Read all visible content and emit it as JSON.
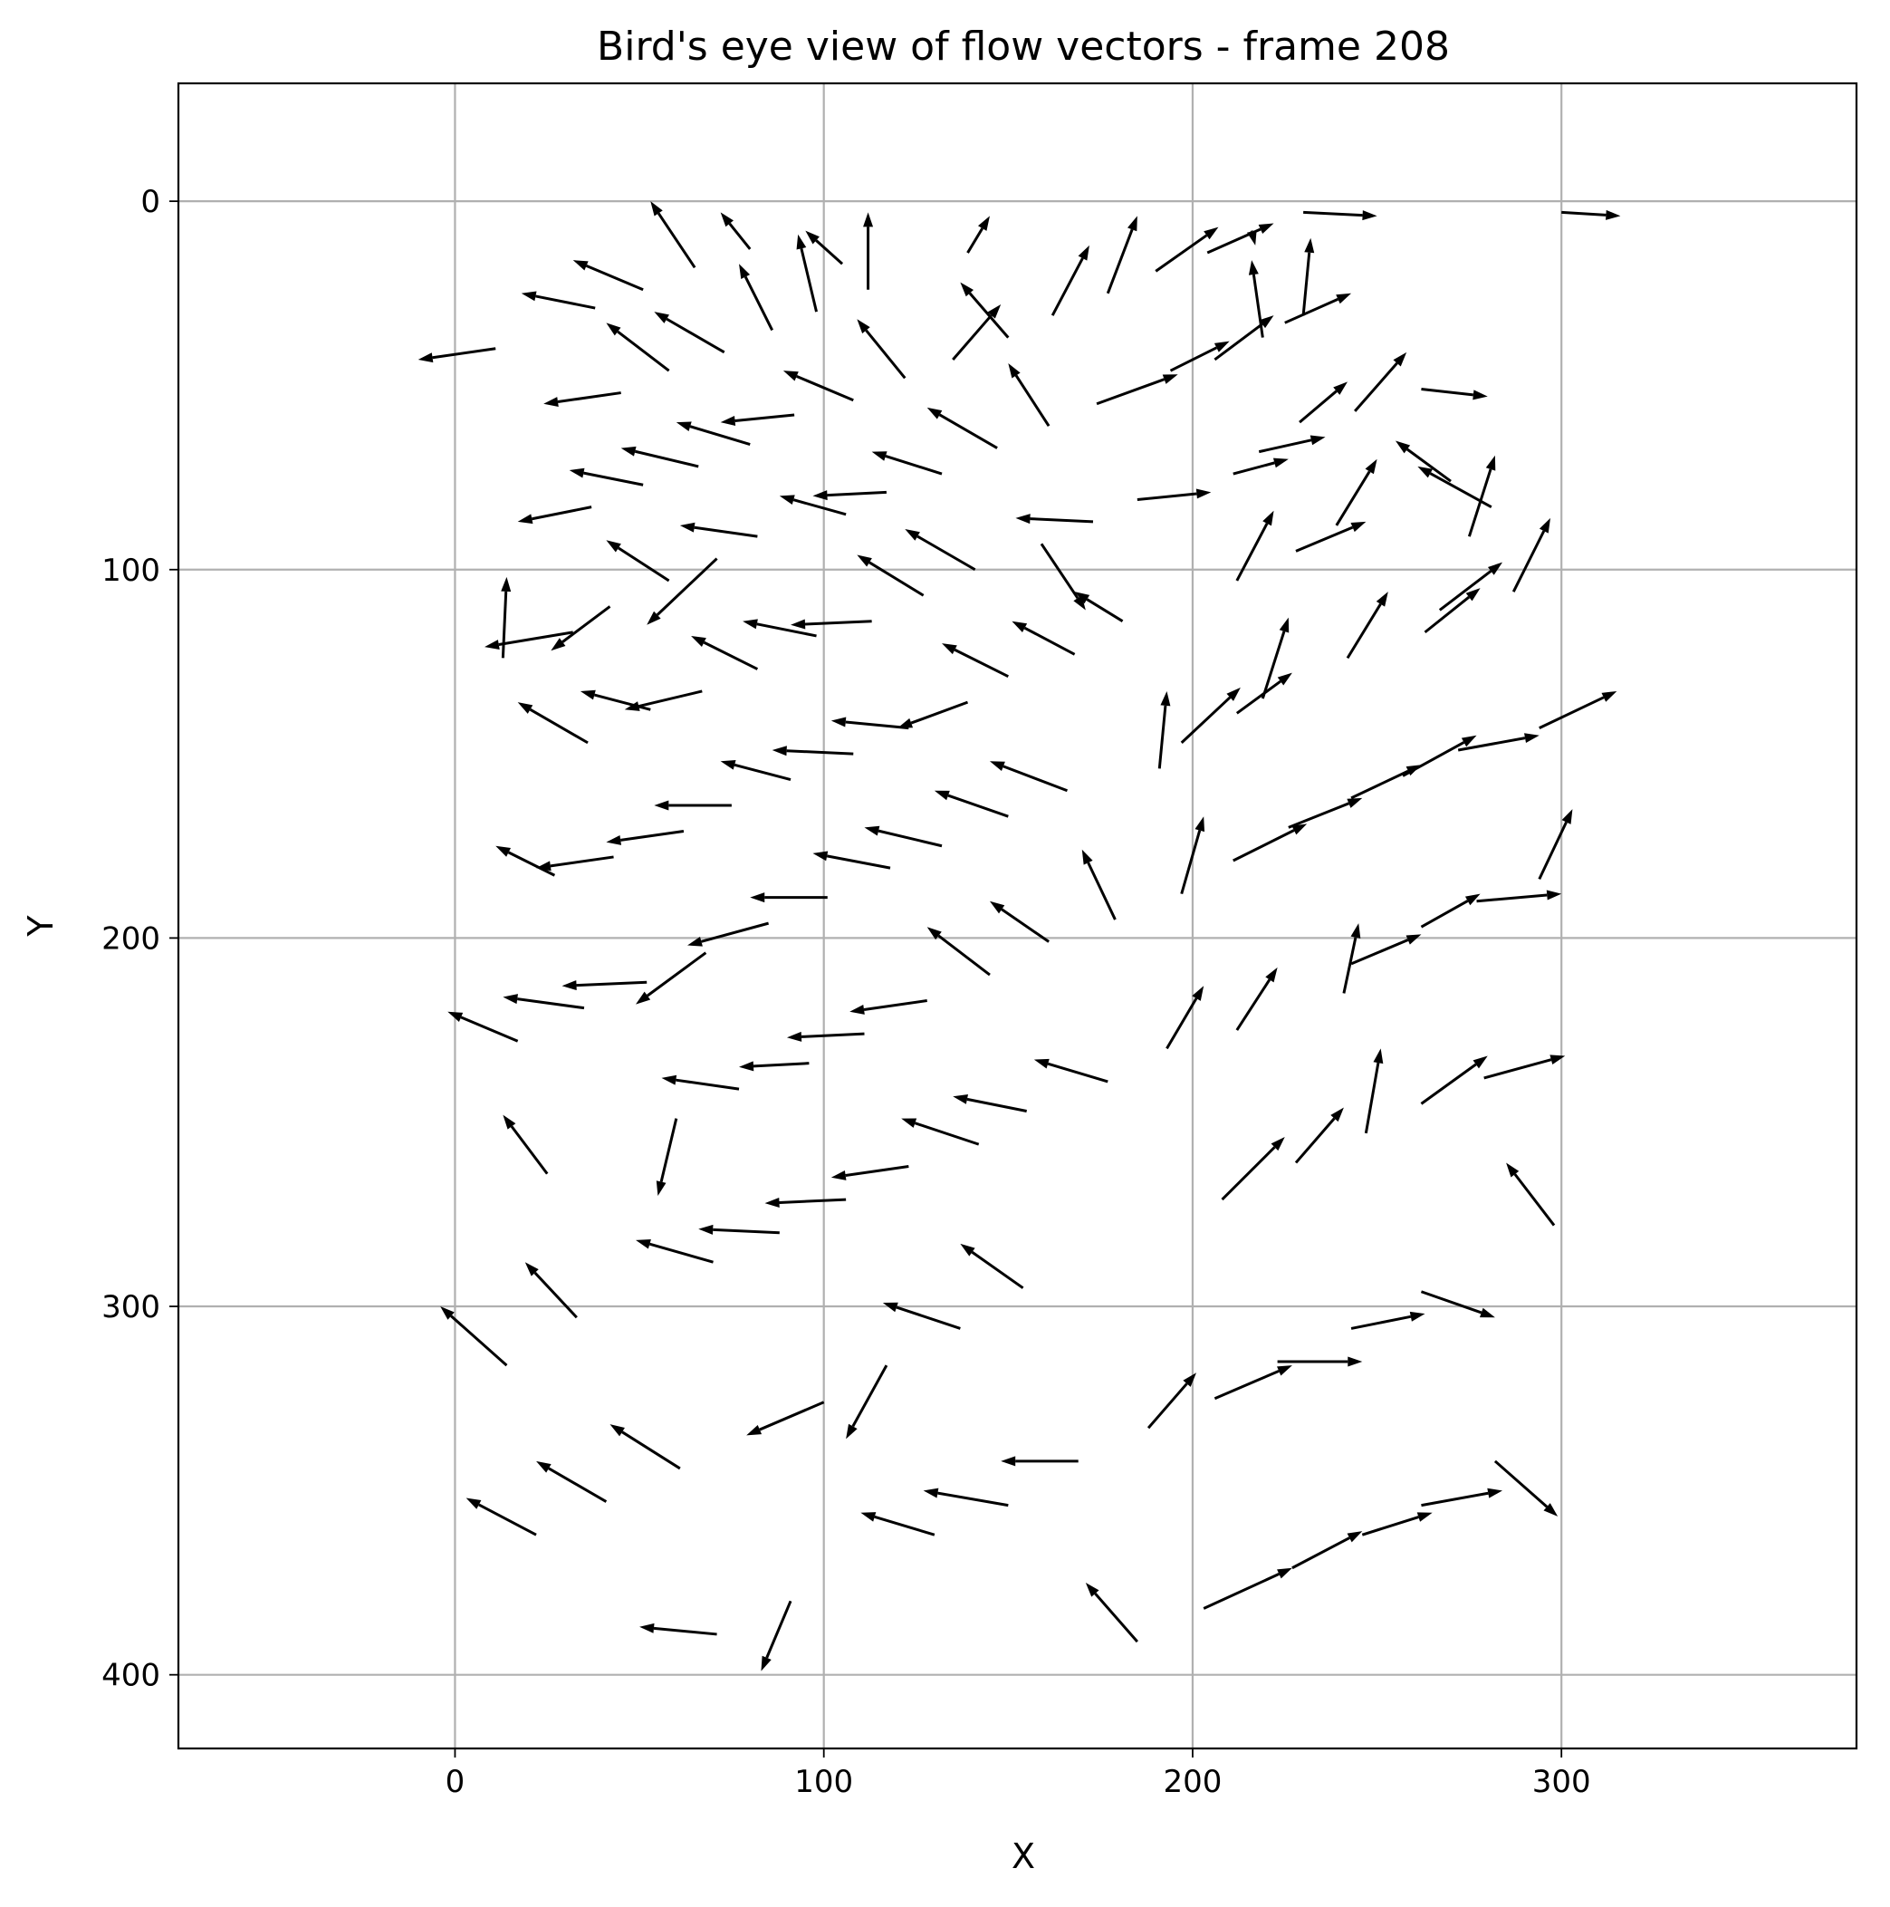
{
  "chart_data": {
    "type": "quiver",
    "title": "Bird's eye view of flow vectors - frame 208",
    "xlabel": "X",
    "ylabel": "Y",
    "xlim": [
      -75,
      380
    ],
    "ylim": [
      420,
      -32
    ],
    "y_inverted": true,
    "grid": true,
    "xticks": [
      0,
      100,
      200,
      300
    ],
    "yticks": [
      0,
      100,
      200,
      300,
      400
    ],
    "vectors": [
      [
        72,
        3,
        80,
        13
      ],
      [
        112,
        3,
        112,
        24
      ],
      [
        145,
        4,
        139,
        14
      ],
      [
        217,
        12,
        216,
        8
      ],
      [
        250,
        4,
        230,
        3
      ],
      [
        316,
        4,
        300,
        3
      ],
      [
        53,
        0,
        65,
        18
      ],
      [
        95,
        8,
        105,
        17
      ],
      [
        93,
        9,
        98,
        30
      ],
      [
        185,
        4,
        177,
        25
      ],
      [
        207,
        7,
        190,
        19
      ],
      [
        222,
        6,
        204,
        14
      ],
      [
        232,
        10,
        230,
        31
      ],
      [
        32,
        16,
        51,
        24
      ],
      [
        77,
        17,
        86,
        35
      ],
      [
        172,
        12,
        162,
        31
      ],
      [
        216,
        16,
        219,
        37
      ],
      [
        18,
        25,
        38,
        29
      ],
      [
        137,
        22,
        150,
        37
      ],
      [
        148,
        28,
        135,
        43
      ],
      [
        243,
        25,
        225,
        33
      ],
      [
        -10,
        43,
        11,
        40
      ],
      [
        41,
        33,
        58,
        46
      ],
      [
        54,
        30,
        73,
        41
      ],
      [
        109,
        32,
        122,
        48
      ],
      [
        222,
        31,
        206,
        43
      ],
      [
        150,
        44,
        161,
        61
      ],
      [
        258,
        41,
        244,
        57
      ],
      [
        89,
        46,
        108,
        54
      ],
      [
        24,
        55,
        45,
        52
      ],
      [
        280,
        53,
        262,
        51
      ],
      [
        196,
        47,
        174,
        55
      ],
      [
        210,
        38,
        194,
        46
      ],
      [
        128,
        56,
        147,
        67
      ],
      [
        72,
        60,
        92,
        58
      ],
      [
        60,
        60,
        80,
        66
      ],
      [
        242,
        49,
        229,
        60
      ],
      [
        236,
        64,
        218,
        68
      ],
      [
        45,
        67,
        66,
        72
      ],
      [
        113,
        68,
        132,
        74
      ],
      [
        31,
        73,
        51,
        77
      ],
      [
        255,
        65,
        270,
        76
      ],
      [
        226,
        70,
        211,
        74
      ],
      [
        88,
        80,
        106,
        85
      ],
      [
        97,
        80,
        117,
        79
      ],
      [
        250,
        70,
        239,
        88
      ],
      [
        261,
        72,
        281,
        83
      ],
      [
        205,
        79,
        185,
        81
      ],
      [
        152,
        86,
        173,
        87
      ],
      [
        282,
        69,
        275,
        91
      ],
      [
        17,
        87,
        37,
        83
      ],
      [
        61,
        88,
        82,
        91
      ],
      [
        122,
        89,
        141,
        100
      ],
      [
        222,
        84,
        212,
        103
      ],
      [
        247,
        87,
        228,
        95
      ],
      [
        41,
        92,
        58,
        103
      ],
      [
        109,
        96,
        127,
        107
      ],
      [
        297,
        86,
        287,
        106
      ],
      [
        52,
        115,
        71,
        97
      ],
      [
        284,
        98,
        267,
        111
      ],
      [
        278,
        105,
        263,
        117
      ],
      [
        168,
        106,
        181,
        114
      ],
      [
        171,
        111,
        159,
        93
      ],
      [
        8,
        121,
        32,
        117
      ],
      [
        14,
        102,
        13,
        124
      ],
      [
        26,
        122,
        42,
        110
      ],
      [
        64,
        118,
        82,
        127
      ],
      [
        78,
        114,
        98,
        118
      ],
      [
        91,
        115,
        113,
        114
      ],
      [
        253,
        106,
        242,
        124
      ],
      [
        226,
        113,
        219,
        135
      ],
      [
        132,
        120,
        150,
        129
      ],
      [
        151,
        114,
        168,
        123
      ],
      [
        34,
        133,
        53,
        138
      ],
      [
        46,
        138,
        67,
        133
      ],
      [
        193,
        133,
        191,
        154
      ],
      [
        213,
        132,
        197,
        147
      ],
      [
        227,
        128,
        212,
        139
      ],
      [
        17,
        136,
        36,
        147
      ],
      [
        120,
        143,
        139,
        136
      ],
      [
        102,
        141,
        123,
        143
      ],
      [
        315,
        133,
        294,
        143
      ],
      [
        86,
        149,
        108,
        150
      ],
      [
        72,
        152,
        91,
        157
      ],
      [
        277,
        145,
        257,
        156
      ],
      [
        294,
        145,
        272,
        149
      ],
      [
        145,
        152,
        166,
        160
      ],
      [
        262,
        153,
        243,
        162
      ],
      [
        54,
        164,
        75,
        164
      ],
      [
        130,
        160,
        150,
        167
      ],
      [
        303,
        165,
        294,
        184
      ],
      [
        203,
        167,
        197,
        188
      ],
      [
        41,
        174,
        62,
        171
      ],
      [
        111,
        170,
        132,
        175
      ],
      [
        246,
        162,
        226,
        170
      ],
      [
        231,
        169,
        211,
        179
      ],
      [
        11,
        175,
        27,
        183
      ],
      [
        22,
        181,
        43,
        178
      ],
      [
        97,
        177,
        118,
        181
      ],
      [
        170,
        176,
        179,
        195
      ],
      [
        80,
        189,
        101,
        189
      ],
      [
        145,
        190,
        161,
        201
      ],
      [
        300,
        188,
        277,
        190
      ],
      [
        278,
        188,
        262,
        197
      ],
      [
        128,
        197,
        145,
        210
      ],
      [
        63,
        202,
        85,
        196
      ],
      [
        245,
        196,
        241,
        215
      ],
      [
        223,
        208,
        212,
        225
      ],
      [
        262,
        199,
        243,
        207
      ],
      [
        203,
        213,
        193,
        230
      ],
      [
        -2,
        220,
        17,
        228
      ],
      [
        13,
        216,
        35,
        219
      ],
      [
        29,
        213,
        52,
        212
      ],
      [
        49,
        218,
        68,
        204
      ],
      [
        107,
        220,
        128,
        217
      ],
      [
        90,
        227,
        111,
        226
      ],
      [
        77,
        235,
        96,
        234
      ],
      [
        157,
        233,
        177,
        239
      ],
      [
        301,
        232,
        279,
        238
      ],
      [
        280,
        232,
        262,
        245
      ],
      [
        56,
        238,
        77,
        241
      ],
      [
        135,
        243,
        155,
        247
      ],
      [
        251,
        230,
        247,
        253
      ],
      [
        13,
        248,
        25,
        264
      ],
      [
        121,
        249,
        142,
        256
      ],
      [
        241,
        246,
        228,
        261
      ],
      [
        55,
        270,
        60,
        249
      ],
      [
        225,
        254,
        208,
        271
      ],
      [
        102,
        265,
        123,
        262
      ],
      [
        84,
        272,
        106,
        271
      ],
      [
        285,
        261,
        298,
        278
      ],
      [
        66,
        279,
        88,
        280
      ],
      [
        49,
        282,
        70,
        288
      ],
      [
        137,
        283,
        154,
        295
      ],
      [
        19,
        288,
        33,
        303
      ],
      [
        116,
        299,
        137,
        306
      ],
      [
        282,
        303,
        262,
        296
      ],
      [
        263,
        302,
        243,
        306
      ],
      [
        -4,
        300,
        14,
        316
      ],
      [
        246,
        315,
        223,
        315
      ],
      [
        227,
        316,
        206,
        325
      ],
      [
        201,
        318,
        188,
        333
      ],
      [
        79,
        335,
        100,
        326
      ],
      [
        106,
        336,
        117,
        316
      ],
      [
        42,
        332,
        61,
        344
      ],
      [
        148,
        342,
        169,
        342
      ],
      [
        299,
        357,
        282,
        342
      ],
      [
        22,
        342,
        41,
        353
      ],
      [
        284,
        350,
        262,
        354
      ],
      [
        3,
        352,
        22,
        362
      ],
      [
        265,
        356,
        246,
        362
      ],
      [
        127,
        350,
        150,
        354
      ],
      [
        110,
        356,
        130,
        362
      ],
      [
        246,
        361,
        227,
        371
      ],
      [
        227,
        371,
        203,
        382
      ],
      [
        171,
        375,
        185,
        391
      ],
      [
        50,
        387,
        71,
        389
      ],
      [
        83,
        399,
        91,
        380
      ]
    ]
  }
}
